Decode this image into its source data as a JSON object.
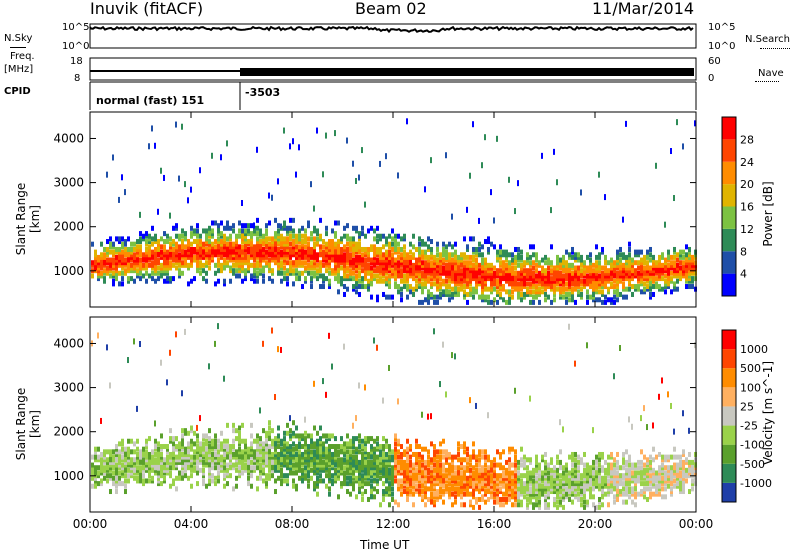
{
  "header": {
    "station": "Inuvik (fitACF)",
    "beam": "Beam 02",
    "date": "11/Mar/2014"
  },
  "strip_labels": {
    "nsky": "N.Sky",
    "nsearch": "N.Search",
    "freq": "Freq.",
    "freq_unit": "[MHz]",
    "nave": "Nave",
    "cpid": "CPID",
    "nsky_ticks": [
      "10^5",
      "10^0"
    ],
    "nsearch_ticks": [
      "10^5",
      "10^0"
    ],
    "freq_ticks": [
      "18",
      "8"
    ],
    "nave_ticks": [
      "60",
      "0"
    ]
  },
  "cpid_segments": [
    {
      "label": "normal (fast) 151",
      "start_hour": 0,
      "end_hour": 6
    },
    {
      "label": "-3503",
      "start_hour": 6,
      "end_hour": 24
    }
  ],
  "chart_data": [
    {
      "type": "heatmap",
      "name": "power",
      "ylabel": "Slant Range [km]",
      "ylim": [
        180,
        4600
      ],
      "y_ticks": [
        1000,
        2000,
        3000,
        4000
      ],
      "x_ticks": [
        "00:00",
        "04:00",
        "08:00",
        "12:00",
        "16:00",
        "20:00",
        "00:00"
      ],
      "colorbar": {
        "label": "Power [dB]",
        "ticks": [
          "4",
          "8",
          "12",
          "16",
          "20",
          "24",
          "28"
        ],
        "colors": [
          "#0000ff",
          "#1f4fa8",
          "#2e8b57",
          "#7cc242",
          "#e0b400",
          "#ff8c00",
          "#ff4500",
          "#ff0000"
        ]
      }
    },
    {
      "type": "heatmap",
      "name": "velocity",
      "ylabel": "Slant Range [km]",
      "ylim": [
        180,
        4600
      ],
      "y_ticks": [
        1000,
        2000,
        3000,
        4000
      ],
      "x_ticks": [
        "00:00",
        "04:00",
        "08:00",
        "12:00",
        "16:00",
        "20:00",
        "00:00"
      ],
      "xlabel": "Time UT",
      "colorbar": {
        "label": "Velocity [m s^-1]",
        "ticks": [
          "1000",
          "500",
          "100",
          "25",
          "-25",
          "-100",
          "-500",
          "-1000"
        ],
        "colors": [
          "#1f3fa8",
          "#2e8b57",
          "#5aa02c",
          "#9ad24a",
          "#c8c8c0",
          "#ffb060",
          "#ff8c00",
          "#ff4500",
          "#ff0000"
        ]
      }
    }
  ]
}
